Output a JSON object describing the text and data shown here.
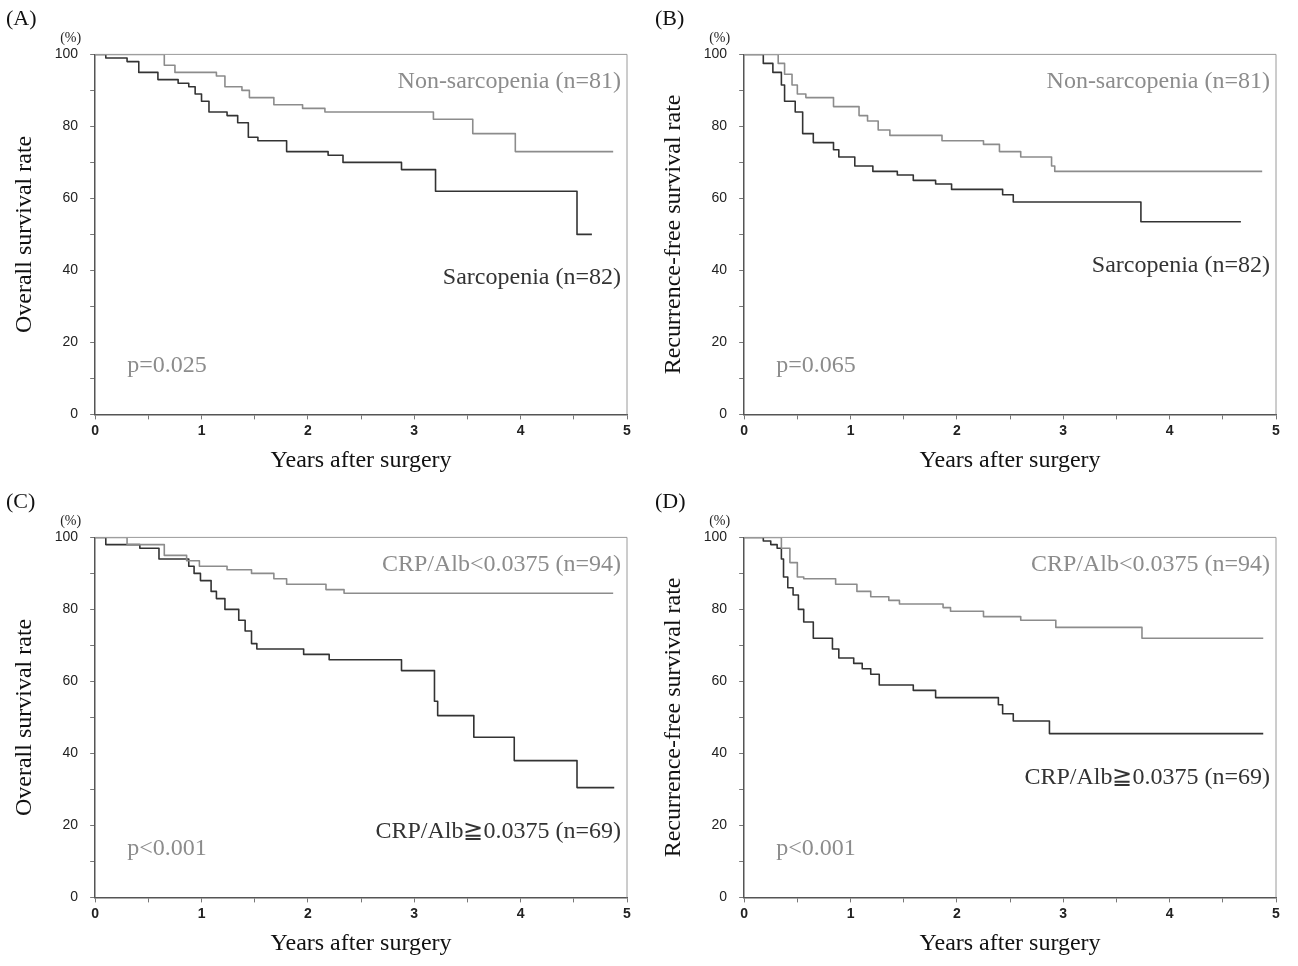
{
  "chart_data": [
    {
      "type": "step",
      "title": "(A)",
      "xlabel": "Years after surgery",
      "ylabel": "Overall survival rate",
      "annotations": [
        "(%)",
        "p=0.025"
      ],
      "xlim": [
        0,
        5
      ],
      "ylim": [
        0,
        100
      ],
      "xticks": [
        0,
        {
          "value": 0.5,
          "label": null
        },
        1,
        {
          "value": 1.5,
          "label": null
        },
        2,
        {
          "value": 2.5,
          "label": null
        },
        3,
        {
          "value": 3.5,
          "label": null
        },
        4,
        {
          "value": 4.5,
          "label": null
        },
        5
      ],
      "yticks": [
        0,
        {
          "value": 10,
          "label": null
        },
        20,
        {
          "value": 30,
          "label": null
        },
        40,
        {
          "value": 50,
          "label": null
        },
        60,
        {
          "value": 70,
          "label": null
        },
        80,
        {
          "value": 90,
          "label": null
        },
        100
      ],
      "grid": false,
      "legend": false,
      "marker": "none",
      "line_style": "solid",
      "series": [
        {
          "name": "Non-sarcopenia (n=81)",
          "color": "#8c8c8c",
          "x": [
            0,
            0.65,
            0.75,
            1.14,
            1.22,
            1.38,
            1.45,
            1.68,
            1.95,
            2.16,
            3.18,
            3.55,
            3.95,
            4.87
          ],
          "values": [
            100,
            97,
            95,
            94,
            91,
            90,
            88,
            86,
            85,
            84,
            82,
            78,
            73,
            73
          ]
        },
        {
          "name": "Sarcopenia (n=82)",
          "color": "#333333",
          "x": [
            0,
            0.1,
            0.3,
            0.41,
            0.59,
            0.78,
            0.88,
            0.94,
            1.0,
            1.07,
            1.24,
            1.34,
            1.44,
            1.53,
            1.8,
            2.19,
            2.33,
            2.88,
            3.2,
            4.53,
            4.67
          ],
          "values": [
            100,
            99,
            98,
            95,
            93,
            92,
            91,
            89,
            87,
            84,
            83,
            81,
            77,
            76,
            73,
            72,
            70,
            68,
            62,
            50,
            50
          ]
        }
      ]
    },
    {
      "type": "step",
      "title": "(B)",
      "xlabel": "Years after surgery",
      "ylabel": "Recurrence-free survival rate",
      "annotations": [
        "(%)",
        "p=0.065"
      ],
      "xlim": [
        0,
        5
      ],
      "ylim": [
        0,
        100
      ],
      "xticks": [
        0,
        {
          "value": 0.5,
          "label": null
        },
        1,
        {
          "value": 1.5,
          "label": null
        },
        2,
        {
          "value": 2.5,
          "label": null
        },
        3,
        {
          "value": 3.5,
          "label": null
        },
        4,
        {
          "value": 4.5,
          "label": null
        },
        5
      ],
      "yticks": [
        0,
        {
          "value": 10,
          "label": null
        },
        20,
        {
          "value": 30,
          "label": null
        },
        40,
        {
          "value": 50,
          "label": null
        },
        60,
        {
          "value": 70,
          "label": null
        },
        80,
        {
          "value": 90,
          "label": null
        },
        100
      ],
      "grid": false,
      "legend": false,
      "marker": "none",
      "line_style": "solid",
      "series": [
        {
          "name": "Non-sarcopenia (n=81)",
          "color": "#8c8c8c",
          "x": [
            0,
            0.32,
            0.38,
            0.45,
            0.5,
            0.58,
            0.84,
            1.08,
            1.16,
            1.26,
            1.37,
            1.86,
            2.25,
            2.4,
            2.6,
            2.89,
            2.92,
            4.87
          ],
          "values": [
            100,
            97.5,
            94.5,
            91.5,
            89,
            88,
            85.5,
            83,
            81.5,
            79,
            77.5,
            76,
            75,
            73,
            71.5,
            69,
            67.5,
            67.5
          ]
        },
        {
          "name": "Sarcopenia (n=82)",
          "color": "#333333",
          "x": [
            0,
            0.18,
            0.27,
            0.35,
            0.38,
            0.48,
            0.55,
            0.65,
            0.84,
            0.89,
            1.04,
            1.21,
            1.44,
            1.59,
            1.8,
            1.95,
            2.43,
            2.53,
            3.73,
            4.67
          ],
          "values": [
            100,
            97.5,
            95,
            91.5,
            87,
            84,
            78,
            75.5,
            73.5,
            71.5,
            69,
            67.5,
            66.5,
            65,
            64,
            62.5,
            61,
            59,
            53.5,
            53.5
          ]
        }
      ]
    },
    {
      "type": "step",
      "title": "(C)",
      "xlabel": "Years after surgery",
      "ylabel": "Overall survival rate",
      "annotations": [
        "(%)",
        "p<0.001"
      ],
      "xlim": [
        0,
        5
      ],
      "ylim": [
        0,
        100
      ],
      "xticks": [
        0,
        {
          "value": 0.5,
          "label": null
        },
        1,
        {
          "value": 1.5,
          "label": null
        },
        2,
        {
          "value": 2.5,
          "label": null
        },
        3,
        {
          "value": 3.5,
          "label": null
        },
        4,
        {
          "value": 4.5,
          "label": null
        },
        5
      ],
      "yticks": [
        0,
        {
          "value": 10,
          "label": null
        },
        20,
        {
          "value": 30,
          "label": null
        },
        40,
        {
          "value": 50,
          "label": null
        },
        60,
        {
          "value": 70,
          "label": null
        },
        80,
        {
          "value": 90,
          "label": null
        },
        100
      ],
      "grid": false,
      "legend": false,
      "marker": "none",
      "line_style": "solid",
      "series": [
        {
          "name": "CRP/Alb<0.0375 (n=94)",
          "color": "#8c8c8c",
          "x": [
            0,
            0.3,
            0.65,
            0.86,
            0.98,
            1.24,
            1.47,
            1.68,
            1.8,
            2.17,
            2.34,
            4.87
          ],
          "values": [
            100,
            98,
            95,
            93.5,
            92,
            91,
            90,
            88.5,
            87,
            85.5,
            84.5,
            84.5
          ]
        },
        {
          "name": "CRP/Alb≧0.0375 (n=69)",
          "color": "#333333",
          "x": [
            0,
            0.1,
            0.42,
            0.6,
            0.88,
            0.93,
            0.99,
            1.09,
            1.14,
            1.22,
            1.35,
            1.41,
            1.47,
            1.52,
            1.96,
            2.2,
            2.88,
            3.19,
            3.22,
            3.56,
            3.94,
            4.53,
            4.88
          ],
          "values": [
            100,
            98,
            97,
            94,
            92,
            90,
            88,
            85,
            83,
            80,
            77,
            74,
            70.5,
            69,
            67.5,
            66,
            63,
            54.5,
            50.5,
            44.5,
            38,
            30.5,
            30.5
          ]
        }
      ]
    },
    {
      "type": "step",
      "title": "(D)",
      "xlabel": "Years after surgery",
      "ylabel": "Recurrence-free survival rate",
      "annotations": [
        "(%)",
        "p<0.001"
      ],
      "xlim": [
        0,
        5
      ],
      "ylim": [
        0,
        100
      ],
      "xticks": [
        0,
        {
          "value": 0.5,
          "label": null
        },
        1,
        {
          "value": 1.5,
          "label": null
        },
        2,
        {
          "value": 2.5,
          "label": null
        },
        3,
        {
          "value": 3.5,
          "label": null
        },
        4,
        {
          "value": 4.5,
          "label": null
        },
        5
      ],
      "yticks": [
        0,
        {
          "value": 10,
          "label": null
        },
        20,
        {
          "value": 30,
          "label": null
        },
        40,
        {
          "value": 50,
          "label": null
        },
        60,
        {
          "value": 70,
          "label": null
        },
        80,
        {
          "value": 90,
          "label": null
        },
        100
      ],
      "grid": false,
      "legend": false,
      "marker": "none",
      "line_style": "solid",
      "series": [
        {
          "name": "CRP/Alb<0.0375 (n=94)",
          "color": "#8c8c8c",
          "x": [
            0,
            0.35,
            0.43,
            0.5,
            0.56,
            0.86,
            1.06,
            1.19,
            1.36,
            1.46,
            1.87,
            1.94,
            2.25,
            2.6,
            2.93,
            3.74,
            4.88
          ],
          "values": [
            100,
            97,
            93,
            89,
            88.5,
            87,
            85,
            83.5,
            82.5,
            81.5,
            80.5,
            79.5,
            78,
            77,
            75,
            72,
            72
          ]
        },
        {
          "name": "CRP/Alb≧0.0375 (n=69)",
          "color": "#333333",
          "x": [
            0,
            0.18,
            0.25,
            0.31,
            0.35,
            0.37,
            0.41,
            0.46,
            0.51,
            0.56,
            0.65,
            0.83,
            0.89,
            1.03,
            1.11,
            1.19,
            1.27,
            1.59,
            1.8,
            2.39,
            2.43,
            2.53,
            2.87,
            4.88
          ],
          "values": [
            100,
            99,
            98,
            97,
            94,
            89,
            86,
            84,
            80,
            76.5,
            72,
            69,
            66.5,
            65,
            63.5,
            62,
            59,
            57.5,
            55.5,
            53.5,
            51,
            49,
            45.5,
            45.5
          ]
        }
      ]
    }
  ]
}
